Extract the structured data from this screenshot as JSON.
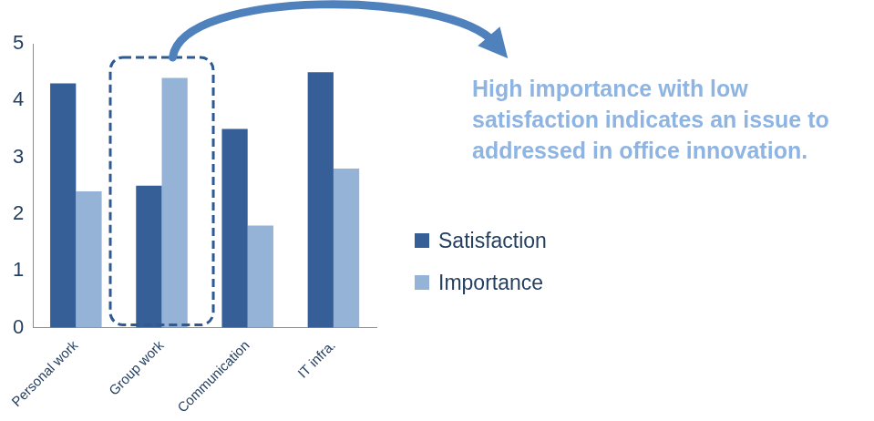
{
  "chart_data": {
    "type": "bar",
    "categories": [
      "Personal work",
      "Group work",
      "Communication",
      "IT infra."
    ],
    "series": [
      {
        "name": "Satisfaction",
        "color": "#355f96",
        "values": [
          4.3,
          2.5,
          3.5,
          4.5
        ]
      },
      {
        "name": "Importance",
        "color": "#95b3d7",
        "values": [
          2.4,
          4.4,
          1.8,
          2.8
        ]
      }
    ],
    "ylim": [
      0,
      5
    ],
    "yticks": [
      0,
      1,
      2,
      3,
      4,
      5
    ],
    "grid": false,
    "legend": "right",
    "annotations": [
      {
        "text": "High importance with low satisfaction indicates an issue to addressed in office innovation.",
        "category": "Group work"
      }
    ]
  }
}
